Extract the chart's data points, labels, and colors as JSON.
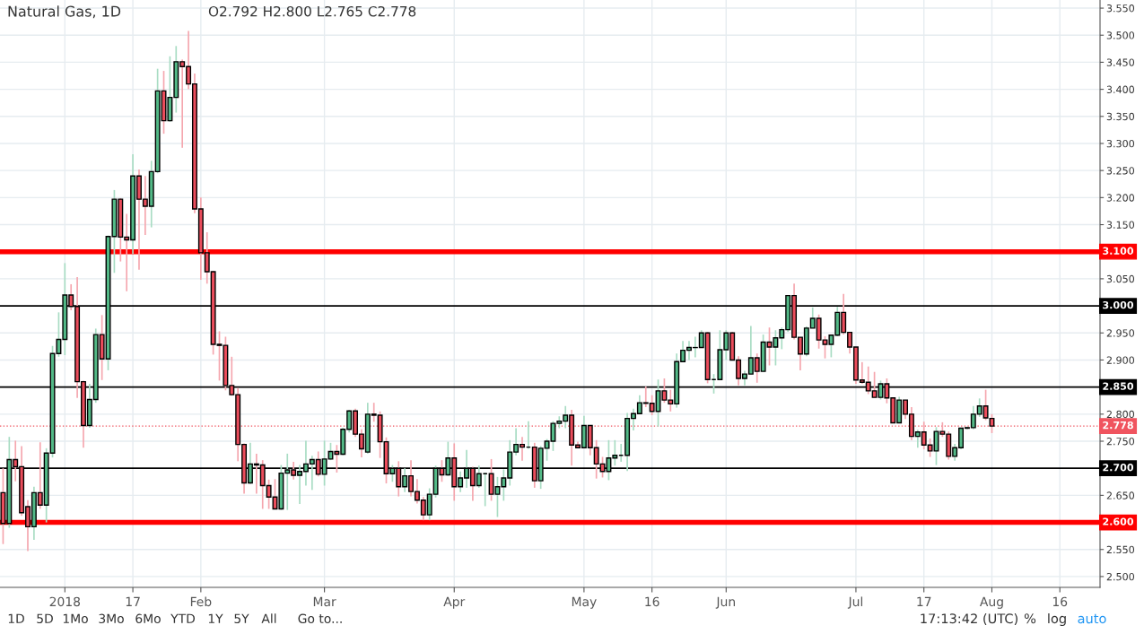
{
  "chart_data": {
    "type": "candlestick",
    "title": "Natural Gas, 1D",
    "annotations": [
      "O2.792 H2.800 L2.765 C2.778",
      "1D",
      "5D",
      "1Mo",
      "3Mo",
      "6Mo",
      "YTD",
      "1Y",
      "5Y",
      "All",
      "Go to...",
      "17:13:42 (UTC)",
      "%",
      "log",
      "auto"
    ],
    "categories": [
      null,
      null,
      null,
      null,
      null,
      null,
      null,
      null,
      null,
      null,
      "2018",
      null,
      null,
      null,
      null,
      null,
      null,
      null,
      null,
      null,
      null,
      "17",
      null,
      null,
      null,
      null,
      null,
      null,
      null,
      null,
      null,
      null,
      "Feb",
      null,
      null,
      null,
      null,
      null,
      null,
      null,
      null,
      null,
      null,
      null,
      null,
      null,
      null,
      null,
      null,
      null,
      null,
      null,
      "Mar",
      null,
      null,
      null,
      null,
      null,
      null,
      null,
      null,
      null,
      null,
      null,
      null,
      null,
      null,
      null,
      null,
      null,
      null,
      null,
      null,
      "Apr",
      null,
      null,
      null,
      null,
      null,
      null,
      null,
      null,
      null,
      null,
      null,
      null,
      null,
      null,
      null,
      null,
      null,
      null,
      null,
      null,
      "May",
      null,
      null,
      null,
      null,
      null,
      null,
      null,
      null,
      null,
      null,
      "16",
      null,
      null,
      null,
      null,
      null,
      null,
      null,
      null,
      null,
      null,
      null,
      "Jun",
      null,
      null,
      null,
      null,
      null,
      null,
      null,
      null,
      null,
      null,
      null,
      null,
      null,
      null,
      null,
      null,
      null,
      null,
      null,
      null,
      "Jul",
      null,
      null,
      null,
      null,
      null,
      null,
      null,
      null,
      null,
      null,
      "17",
      null,
      null,
      null,
      null,
      null,
      null,
      null,
      null,
      null,
      null,
      "Aug",
      null,
      null,
      null,
      null,
      null,
      null,
      null,
      null,
      null,
      null,
      "16",
      null,
      null,
      null,
      null,
      null,
      null
    ],
    "ohlc": [
      [
        2.655,
        2.7,
        2.56,
        2.598
      ],
      [
        2.598,
        2.758,
        2.59,
        2.716
      ],
      [
        2.716,
        2.751,
        2.676,
        2.703
      ],
      [
        2.703,
        2.741,
        2.612,
        2.618
      ],
      [
        2.629,
        2.641,
        2.547,
        2.592
      ],
      [
        2.592,
        2.666,
        2.568,
        2.655
      ],
      [
        2.655,
        2.748,
        2.625,
        2.632
      ],
      [
        2.632,
        2.737,
        2.6,
        2.728
      ],
      [
        2.728,
        2.926,
        2.72,
        2.912
      ],
      [
        2.912,
        2.988,
        2.906,
        2.938
      ],
      [
        2.938,
        3.079,
        2.909,
        3.02
      ],
      [
        3.02,
        3.04,
        2.992,
        2.999
      ],
      [
        2.999,
        3.053,
        2.83,
        2.86
      ],
      [
        2.86,
        2.862,
        2.738,
        2.779
      ],
      [
        2.779,
        2.856,
        2.775,
        2.827
      ],
      [
        2.827,
        2.958,
        2.821,
        2.947
      ],
      [
        2.947,
        2.983,
        2.863,
        2.902
      ],
      [
        2.902,
        3.13,
        2.881,
        3.128
      ],
      [
        3.128,
        3.214,
        3.061,
        3.197
      ],
      [
        3.197,
        3.199,
        3.082,
        3.127
      ],
      [
        3.127,
        3.17,
        3.027,
        3.122
      ],
      [
        3.122,
        3.28,
        3.096,
        3.24
      ],
      [
        3.24,
        3.252,
        3.067,
        3.197
      ],
      [
        3.197,
        3.24,
        3.131,
        3.184
      ],
      [
        3.184,
        3.268,
        3.145,
        3.248
      ],
      [
        3.248,
        3.438,
        3.245,
        3.397
      ],
      [
        3.397,
        3.434,
        3.318,
        3.342
      ],
      [
        3.342,
        3.461,
        3.34,
        3.385
      ],
      [
        3.385,
        3.48,
        3.357,
        3.451
      ],
      [
        3.451,
        3.455,
        3.292,
        3.442
      ],
      [
        3.442,
        3.508,
        3.4,
        3.41
      ],
      [
        3.41,
        3.429,
        3.171,
        3.179
      ],
      [
        3.179,
        3.2,
        3.048,
        3.098
      ],
      [
        3.098,
        3.136,
        3.041,
        3.063
      ],
      [
        3.063,
        3.065,
        2.91,
        2.929
      ],
      [
        2.929,
        2.953,
        2.862,
        2.927
      ],
      [
        2.927,
        2.943,
        2.844,
        2.853
      ],
      [
        2.853,
        2.906,
        2.834,
        2.836
      ],
      [
        2.836,
        2.848,
        2.713,
        2.744
      ],
      [
        2.744,
        2.746,
        2.653,
        2.673
      ],
      [
        2.673,
        2.747,
        2.671,
        2.708
      ],
      [
        2.708,
        2.727,
        2.653,
        2.706
      ],
      [
        2.706,
        2.715,
        2.625,
        2.668
      ],
      [
        2.668,
        2.679,
        2.625,
        2.647
      ],
      [
        2.647,
        2.68,
        2.624,
        2.625
      ],
      [
        2.625,
        2.706,
        2.623,
        2.691
      ],
      [
        2.691,
        2.727,
        2.623,
        2.697
      ],
      [
        2.697,
        2.712,
        2.679,
        2.687
      ],
      [
        2.687,
        2.706,
        2.634,
        2.694
      ],
      [
        2.694,
        2.751,
        2.668,
        2.708
      ],
      [
        2.708,
        2.723,
        2.66,
        2.716
      ],
      [
        2.716,
        2.731,
        2.685,
        2.689
      ],
      [
        2.689,
        2.751,
        2.668,
        2.717
      ],
      [
        2.717,
        2.747,
        2.715,
        2.731
      ],
      [
        2.731,
        2.743,
        2.692,
        2.726
      ],
      [
        2.726,
        2.775,
        2.724,
        2.772
      ],
      [
        2.772,
        2.808,
        2.766,
        2.806
      ],
      [
        2.806,
        2.81,
        2.758,
        2.763
      ],
      [
        2.763,
        2.772,
        2.72,
        2.736
      ],
      [
        2.73,
        2.821,
        2.727,
        2.8
      ],
      [
        2.8,
        2.821,
        2.786,
        2.798
      ],
      [
        2.798,
        2.805,
        2.719,
        2.749
      ],
      [
        2.749,
        2.757,
        2.672,
        2.69
      ],
      [
        2.69,
        2.706,
        2.675,
        2.7
      ],
      [
        2.7,
        2.713,
        2.648,
        2.666
      ],
      [
        2.666,
        2.7,
        2.656,
        2.686
      ],
      [
        2.686,
        2.715,
        2.648,
        2.657
      ],
      [
        2.657,
        2.68,
        2.635,
        2.641
      ],
      [
        2.641,
        2.647,
        2.604,
        2.614
      ],
      [
        2.614,
        2.663,
        2.604,
        2.652
      ],
      [
        2.652,
        2.705,
        2.646,
        2.7
      ],
      [
        2.7,
        2.715,
        2.675,
        2.688
      ],
      [
        2.688,
        2.749,
        2.686,
        2.719
      ],
      [
        2.719,
        2.746,
        2.64,
        2.666
      ],
      [
        2.666,
        2.694,
        2.656,
        2.682
      ],
      [
        2.682,
        2.734,
        2.664,
        2.7
      ],
      [
        2.7,
        2.703,
        2.64,
        2.668
      ],
      [
        2.668,
        2.705,
        2.664,
        2.69
      ],
      [
        2.69,
        2.692,
        2.63,
        2.69
      ],
      [
        2.69,
        2.717,
        2.64,
        2.652
      ],
      [
        2.652,
        2.684,
        2.61,
        2.666
      ],
      [
        2.666,
        2.698,
        2.64,
        2.682
      ],
      [
        2.682,
        2.752,
        2.668,
        2.73
      ],
      [
        2.73,
        2.774,
        2.724,
        2.744
      ],
      [
        2.744,
        2.758,
        2.714,
        2.739
      ],
      [
        2.739,
        2.787,
        2.736,
        2.739
      ],
      [
        2.739,
        2.747,
        2.664,
        2.677
      ],
      [
        2.677,
        2.741,
        2.662,
        2.737
      ],
      [
        2.737,
        2.754,
        2.714,
        2.75
      ],
      [
        2.75,
        2.787,
        2.732,
        2.783
      ],
      [
        2.783,
        2.796,
        2.774,
        2.787
      ],
      [
        2.787,
        2.815,
        2.774,
        2.798
      ],
      [
        2.798,
        2.808,
        2.705,
        2.743
      ],
      [
        2.743,
        2.749,
        2.738,
        2.738
      ],
      [
        2.738,
        2.797,
        2.738,
        2.779
      ],
      [
        2.779,
        2.779,
        2.724,
        2.738
      ],
      [
        2.738,
        2.752,
        2.681,
        2.708
      ],
      [
        2.708,
        2.721,
        2.683,
        2.694
      ],
      [
        2.694,
        2.752,
        2.678,
        2.719
      ],
      [
        2.719,
        2.752,
        2.705,
        2.724
      ],
      [
        2.724,
        2.745,
        2.712,
        2.724
      ],
      [
        2.724,
        2.802,
        2.695,
        2.792
      ],
      [
        2.792,
        2.81,
        2.77,
        2.801
      ],
      [
        2.801,
        2.835,
        2.801,
        2.821
      ],
      [
        2.821,
        2.851,
        2.813,
        2.82
      ],
      [
        2.82,
        2.835,
        2.798,
        2.805
      ],
      [
        2.805,
        2.864,
        2.777,
        2.843
      ],
      [
        2.843,
        2.866,
        2.821,
        2.826
      ],
      [
        2.826,
        2.845,
        2.805,
        2.819
      ],
      [
        2.819,
        2.912,
        2.812,
        2.897
      ],
      [
        2.897,
        2.935,
        2.897,
        2.918
      ],
      [
        2.918,
        2.935,
        2.9,
        2.923
      ],
      [
        2.923,
        2.943,
        2.905,
        2.923
      ],
      [
        2.923,
        2.955,
        2.923,
        2.95
      ],
      [
        2.95,
        2.952,
        2.857,
        2.864
      ],
      [
        2.864,
        2.874,
        2.838,
        2.864
      ],
      [
        2.864,
        2.955,
        2.864,
        2.919
      ],
      [
        2.919,
        2.955,
        2.9,
        2.95
      ],
      [
        2.95,
        2.952,
        2.9,
        2.9
      ],
      [
        2.9,
        2.907,
        2.853,
        2.866
      ],
      [
        2.866,
        2.88,
        2.853,
        2.874
      ],
      [
        2.874,
        2.963,
        2.874,
        2.904
      ],
      [
        2.904,
        2.912,
        2.858,
        2.879
      ],
      [
        2.879,
        2.947,
        2.879,
        2.933
      ],
      [
        2.933,
        2.96,
        2.89,
        2.924
      ],
      [
        2.924,
        2.955,
        2.89,
        2.941
      ],
      [
        2.941,
        2.96,
        2.92,
        2.956
      ],
      [
        2.956,
        3.019,
        2.952,
        3.019
      ],
      [
        3.019,
        3.041,
        2.938,
        2.942
      ],
      [
        2.942,
        2.942,
        2.881,
        2.911
      ],
      [
        2.911,
        2.962,
        2.907,
        2.959
      ],
      [
        2.959,
        2.997,
        2.959,
        2.977
      ],
      [
        2.977,
        2.984,
        2.921,
        2.937
      ],
      [
        2.937,
        2.944,
        2.903,
        2.929
      ],
      [
        2.929,
        2.946,
        2.905,
        2.946
      ],
      [
        2.946,
        2.998,
        2.944,
        2.988
      ],
      [
        2.988,
        3.022,
        2.947,
        2.951
      ],
      [
        2.951,
        2.951,
        2.912,
        2.924
      ],
      [
        2.924,
        2.924,
        2.856,
        2.863
      ],
      [
        2.863,
        2.896,
        2.856,
        2.859
      ],
      [
        2.859,
        2.888,
        2.837,
        2.843
      ],
      [
        2.843,
        2.878,
        2.831,
        2.831
      ],
      [
        2.831,
        2.862,
        2.827,
        2.856
      ],
      [
        2.856,
        2.866,
        2.82,
        2.83
      ],
      [
        2.83,
        2.83,
        2.784,
        2.784
      ],
      [
        2.784,
        2.832,
        2.784,
        2.826
      ],
      [
        2.826,
        2.826,
        2.791,
        2.8
      ],
      [
        2.8,
        2.813,
        2.752,
        2.759
      ],
      [
        2.759,
        2.771,
        2.738,
        2.767
      ],
      [
        2.767,
        2.786,
        2.735,
        2.743
      ],
      [
        2.743,
        2.755,
        2.721,
        2.732
      ],
      [
        2.732,
        2.776,
        2.706,
        2.768
      ],
      [
        2.768,
        2.785,
        2.758,
        2.763
      ],
      [
        2.763,
        2.768,
        2.716,
        2.722
      ],
      [
        2.722,
        2.745,
        2.714,
        2.738
      ],
      [
        2.738,
        2.774,
        2.735,
        2.774
      ],
      [
        2.774,
        2.777,
        2.772,
        2.775
      ],
      [
        2.775,
        2.815,
        2.772,
        2.8
      ],
      [
        2.8,
        2.829,
        2.795,
        2.815
      ],
      [
        2.815,
        2.845,
        2.789,
        2.793
      ],
      [
        2.792,
        2.8,
        2.765,
        2.778
      ],
      null,
      null,
      null,
      null,
      null,
      null,
      null,
      null,
      null,
      null,
      null,
      null,
      null,
      null,
      null,
      null,
      null
    ],
    "ylim": [
      2.48,
      3.565
    ],
    "yticks": [
      {
        "value": 2.5,
        "label": "2.500"
      },
      {
        "value": 2.55,
        "label": "2.550"
      },
      {
        "value": 2.65,
        "label": "2.650"
      },
      {
        "value": 2.75,
        "label": "2.750"
      },
      {
        "value": 2.8,
        "label": "2.800"
      },
      {
        "value": 2.9,
        "label": "2.900"
      },
      {
        "value": 2.95,
        "label": "2.950"
      },
      {
        "value": 3.05,
        "label": "3.050"
      },
      {
        "value": 3.15,
        "label": "3.150"
      },
      {
        "value": 3.2,
        "label": "3.200"
      },
      {
        "value": 3.25,
        "label": "3.250"
      },
      {
        "value": 3.3,
        "label": "3.300"
      },
      {
        "value": 3.35,
        "label": "3.350"
      },
      {
        "value": 3.4,
        "label": "3.400"
      },
      {
        "value": 3.45,
        "label": "3.450"
      },
      {
        "value": 3.5,
        "label": "3.500"
      },
      {
        "value": 3.55,
        "label": "3.550"
      }
    ],
    "ref_lines": [
      {
        "axis": "y",
        "value": 3.1,
        "label": "3.100",
        "color": "#ff0000",
        "line_style": "solid"
      },
      {
        "axis": "y",
        "value": 3.0,
        "label": "3.000",
        "color": "#000000",
        "line_style": "solid"
      },
      {
        "axis": "y",
        "value": 2.85,
        "label": "2.850",
        "color": "#000000",
        "line_style": "solid"
      },
      {
        "axis": "y",
        "value": 2.7,
        "label": "2.700",
        "color": "#000000",
        "line_style": "solid"
      },
      {
        "axis": "y",
        "value": 2.6,
        "label": "2.600",
        "color": "#ff0000",
        "line_style": "solid"
      },
      {
        "axis": "y",
        "value": 2.778,
        "label": "2.778",
        "color": "#f0545f",
        "line_style": "dotted"
      }
    ],
    "grid": true,
    "legend": false
  }
}
